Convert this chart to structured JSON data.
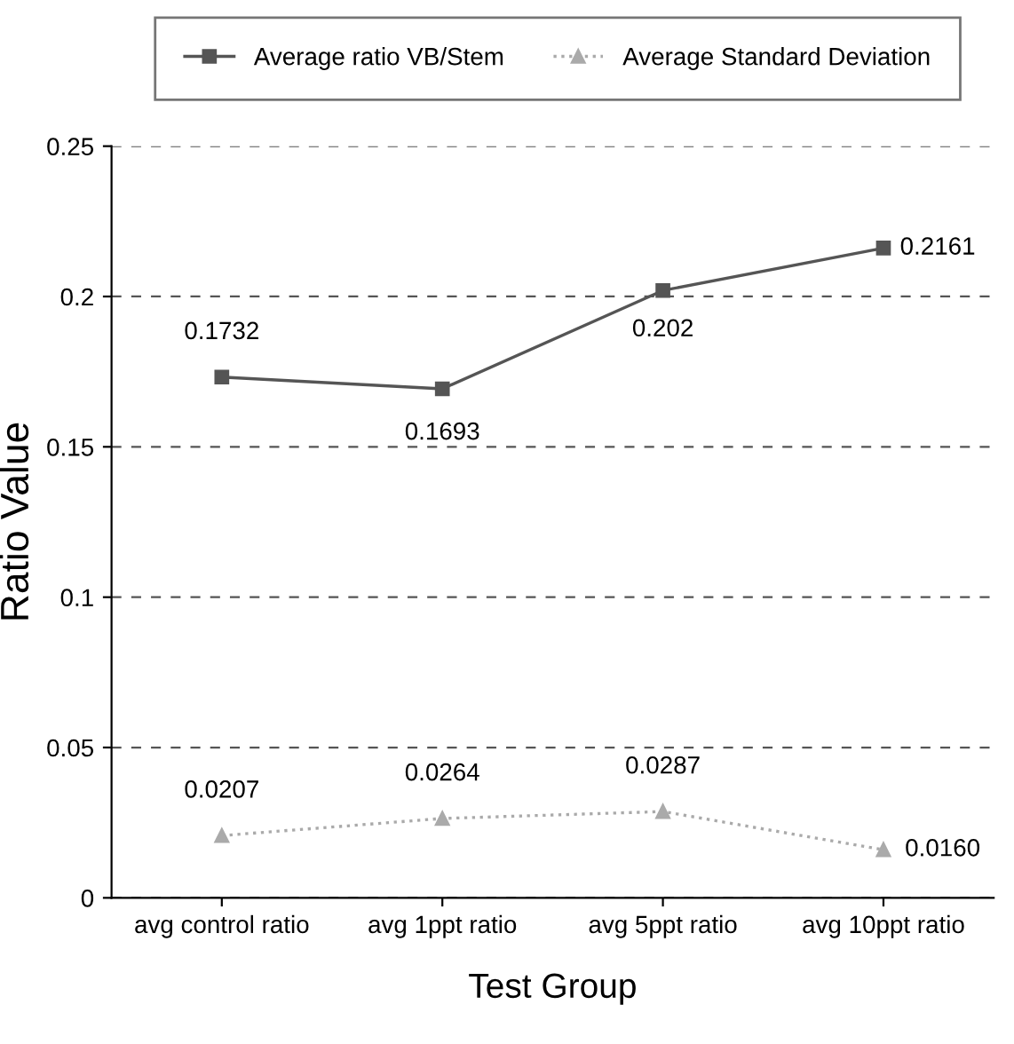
{
  "chart_data": {
    "type": "line",
    "xlabel": "Test Group",
    "ylabel": "Ratio Value",
    "categories": [
      "avg control ratio",
      "avg 1ppt ratio",
      "avg 5ppt ratio",
      "avg 10ppt ratio"
    ],
    "series": [
      {
        "name": "Average ratio VB/Stem",
        "color": "#555555",
        "marker": "square",
        "line_style": "solid",
        "values": [
          0.1732,
          0.1693,
          0.202,
          0.2161
        ],
        "value_labels": [
          "0.1732",
          "0.1693",
          "0.202",
          "0.2161"
        ]
      },
      {
        "name": "Average Standard Deviation",
        "color": "#aaaaaa",
        "marker": "triangle",
        "line_style": "dotted",
        "values": [
          0.0207,
          0.0264,
          0.0287,
          0.016
        ],
        "value_labels": [
          "0.0207",
          "0.0264",
          "0.0287",
          "0.0160"
        ]
      }
    ],
    "ylim": [
      0,
      0.25
    ],
    "yticks": [
      0,
      0.05,
      0.1,
      0.15,
      0.2,
      0.25
    ],
    "grid": "y",
    "legend": "top"
  }
}
